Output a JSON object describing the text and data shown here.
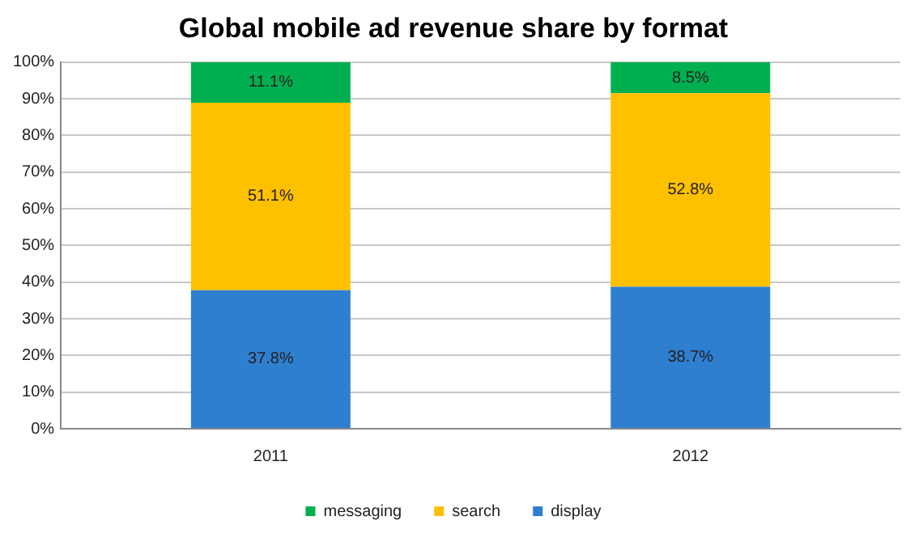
{
  "chart_data": {
    "type": "bar",
    "title": "Global mobile ad revenue share by format",
    "categories": [
      "2011",
      "2012"
    ],
    "stacked": true,
    "series": [
      {
        "name": "display",
        "color": "#2e7fd0",
        "values": [
          37.8,
          38.7
        ],
        "value_labels": [
          "37.8%",
          "38.7%"
        ]
      },
      {
        "name": "search",
        "color": "#ffc000",
        "values": [
          51.1,
          52.8
        ],
        "value_labels": [
          "51.1%",
          "52.8%"
        ]
      },
      {
        "name": "messaging",
        "color": "#00b050",
        "values": [
          11.1,
          8.5
        ],
        "value_labels": [
          "11.1%",
          "8.5%"
        ]
      }
    ],
    "ylim": [
      0,
      100
    ],
    "yticks": [
      {
        "value": 0,
        "label": "0%"
      },
      {
        "value": 10,
        "label": "10%"
      },
      {
        "value": 20,
        "label": "20%"
      },
      {
        "value": 30,
        "label": "30%"
      },
      {
        "value": 40,
        "label": "40%"
      },
      {
        "value": 50,
        "label": "50%"
      },
      {
        "value": 60,
        "label": "60%"
      },
      {
        "value": 70,
        "label": "70%"
      },
      {
        "value": 80,
        "label": "80%"
      },
      {
        "value": 90,
        "label": "90%"
      },
      {
        "value": 100,
        "label": "100%"
      }
    ],
    "grid": "y",
    "legend": "bottom"
  }
}
